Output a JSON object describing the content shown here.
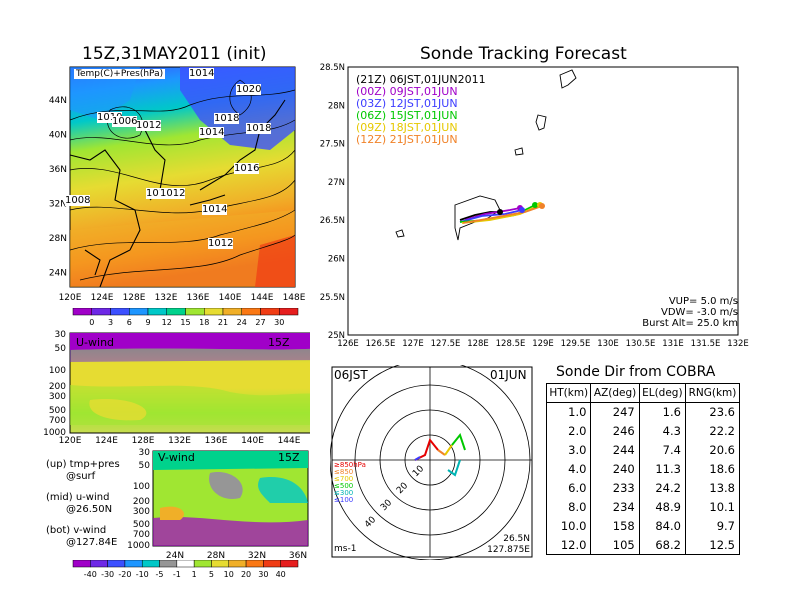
{
  "left_map": {
    "title": "15Z,31MAY2011 (init)",
    "inset_label": "Temp(C)+Pres(hPa)",
    "lat_ticks": [
      "44N",
      "40N",
      "36N",
      "32N",
      "28N",
      "24N"
    ],
    "lon_ticks": [
      "120E",
      "124E",
      "128E",
      "132E",
      "136E",
      "140E",
      "144E",
      "148E"
    ],
    "isobar_labels": [
      "1020",
      "1018",
      "1018",
      "1014",
      "1016",
      "1014",
      "1012",
      "1008",
      "1010",
      "1012",
      "1010",
      "1012",
      "1006",
      "1014"
    ],
    "colorbar_ticks": [
      "0",
      "3",
      "6",
      "9",
      "12",
      "15",
      "18",
      "21",
      "24",
      "27",
      "30"
    ],
    "colorbar_colors": [
      "#a000c8",
      "#6e28e6",
      "#3c50ff",
      "#1e96ff",
      "#00c8c8",
      "#00d28c",
      "#a0e632",
      "#e6dc32",
      "#f0af28",
      "#fa7814",
      "#f03c14",
      "#e61e1e"
    ]
  },
  "u_wind": {
    "label": "U-wind",
    "time": "15Z",
    "pressure_ticks": [
      "30",
      "50",
      "100",
      "200",
      "300",
      "500",
      "700",
      "1000"
    ],
    "lon_ticks": [
      "120E",
      "124E",
      "128E",
      "132E",
      "136E",
      "140E",
      "144E",
      "148E"
    ]
  },
  "v_wind": {
    "label": "V-wind",
    "time": "15Z",
    "pressure_ticks": [
      "30",
      "50",
      "100",
      "200",
      "300",
      "500",
      "700",
      "1000"
    ],
    "lat_ticks": [
      "24N",
      "28N",
      "32N",
      "36N"
    ],
    "colorbar_ticks": [
      "-40",
      "-30",
      "-20",
      "-10",
      "-5",
      "-1",
      "1",
      "5",
      "10",
      "20",
      "30",
      "40"
    ]
  },
  "legend_notes": [
    {
      "line1": "(up) tmp+pres",
      "line2": "@surf"
    },
    {
      "line1": "(mid) u-wind",
      "line2": "@26.50N"
    },
    {
      "line1": "(bot) v-wind",
      "line2": "@127.84E"
    }
  ],
  "forecast_map": {
    "title": "Sonde Tracking Forecast",
    "lat_ticks": [
      "28.5N",
      "28N",
      "27.5N",
      "27N",
      "26.5N",
      "26N",
      "25.5N",
      "25N"
    ],
    "lon_ticks": [
      "126E",
      "126.5E",
      "127E",
      "127.5E",
      "128E",
      "128.5E",
      "129E",
      "129.5E",
      "130E",
      "130.5E",
      "131E",
      "131.5E",
      "132E"
    ],
    "legend": [
      {
        "text": "(21Z) 06JST,01JUN2011",
        "color": "#000000"
      },
      {
        "text": "(00Z) 09JST,01JUN",
        "color": "#a000c8"
      },
      {
        "text": "(03Z) 12JST,01JUN",
        "color": "#3c3cff"
      },
      {
        "text": "(06Z) 15JST,01JUN",
        "color": "#00c800"
      },
      {
        "text": "(09Z) 18JST,01JUN",
        "color": "#e6c800"
      },
      {
        "text": "(12Z) 21JST,01JUN",
        "color": "#f08228"
      }
    ],
    "params": [
      "VUP=  5.0  m/s",
      "VDW= -3.0  m/s",
      "Burst Alt=  25.0  km"
    ]
  },
  "hodograph": {
    "time_label": "06JST",
    "date_label": "01JUN",
    "ring_labels": [
      "10",
      "20",
      "30",
      "40"
    ],
    "levels": [
      {
        "text": "≥850hPa",
        "color": "#e60000"
      },
      {
        "text": "≤850",
        "color": "#f08228"
      },
      {
        "text": "≤700",
        "color": "#e6c800"
      },
      {
        "text": "≤500",
        "color": "#00c800"
      },
      {
        "text": "≤300",
        "color": "#00b4b4"
      },
      {
        "text": "≤100",
        "color": "#3c3cff"
      }
    ],
    "units": "ms-1",
    "location_lat": "26.5N",
    "location_lon": "127.875E"
  },
  "cobra": {
    "title": "Sonde Dir from COBRA",
    "headers": [
      "HT(km)",
      "AZ(deg)",
      "EL(deg)",
      "RNG(km)"
    ],
    "rows": [
      [
        "1.0",
        "247",
        "1.6",
        "23.6"
      ],
      [
        "2.0",
        "246",
        "4.3",
        "22.2"
      ],
      [
        "3.0",
        "244",
        "7.4",
        "20.6"
      ],
      [
        "4.0",
        "240",
        "11.3",
        "18.6"
      ],
      [
        "6.0",
        "233",
        "24.2",
        "13.8"
      ],
      [
        "8.0",
        "234",
        "48.9",
        "10.1"
      ],
      [
        "10.0",
        "158",
        "84.0",
        "9.7"
      ],
      [
        "12.0",
        "105",
        "68.2",
        "12.5"
      ]
    ]
  }
}
